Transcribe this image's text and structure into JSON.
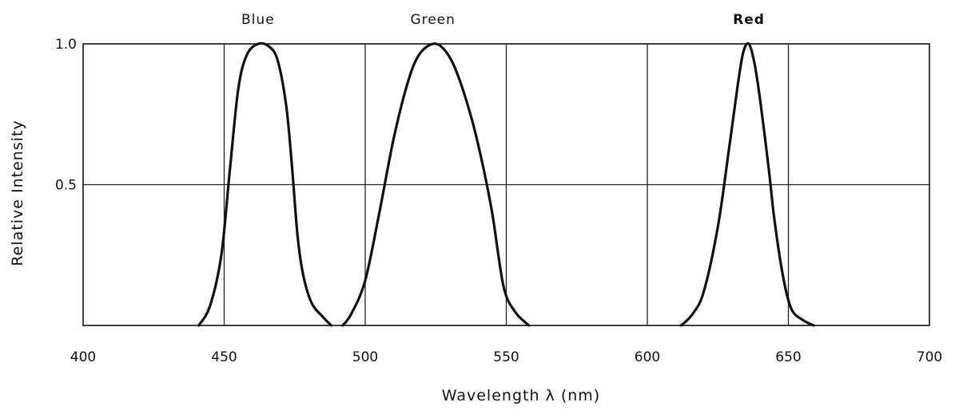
{
  "chart_data": {
    "type": "line",
    "title": "",
    "xlabel": "Wavelength λ (nm)",
    "ylabel": "Relative Intensity",
    "xlim": [
      400,
      700
    ],
    "ylim": [
      0,
      1.0
    ],
    "x_ticks": [
      "400",
      "450",
      "500",
      "550",
      "600",
      "650",
      "700"
    ],
    "y_ticks": [
      "0.5",
      "1.0"
    ],
    "grid": true,
    "series": [
      {
        "name": "Blue",
        "points": [
          [
            441,
            0
          ],
          [
            445,
            0.07
          ],
          [
            449,
            0.25
          ],
          [
            452,
            0.55
          ],
          [
            455,
            0.84
          ],
          [
            458,
            0.96
          ],
          [
            462,
            1.0
          ],
          [
            466,
            0.99
          ],
          [
            469,
            0.94
          ],
          [
            472,
            0.78
          ],
          [
            474,
            0.57
          ],
          [
            476,
            0.32
          ],
          [
            478,
            0.18
          ],
          [
            481,
            0.08
          ],
          [
            485,
            0.03
          ],
          [
            488,
            0
          ]
        ]
      },
      {
        "name": "Green",
        "points": [
          [
            492,
            0
          ],
          [
            495,
            0.04
          ],
          [
            500,
            0.16
          ],
          [
            505,
            0.4
          ],
          [
            510,
            0.66
          ],
          [
            515,
            0.86
          ],
          [
            519,
            0.96
          ],
          [
            524,
            1.0
          ],
          [
            528,
            0.98
          ],
          [
            532,
            0.91
          ],
          [
            537,
            0.76
          ],
          [
            541,
            0.6
          ],
          [
            545,
            0.4
          ],
          [
            549,
            0.14
          ],
          [
            553,
            0.05
          ],
          [
            558,
            0
          ]
        ]
      },
      {
        "name": "Red",
        "points": [
          [
            612,
            0
          ],
          [
            616,
            0.04
          ],
          [
            620,
            0.12
          ],
          [
            625,
            0.35
          ],
          [
            629,
            0.63
          ],
          [
            632,
            0.85
          ],
          [
            634,
            0.97
          ],
          [
            636,
            1.0
          ],
          [
            638,
            0.93
          ],
          [
            640,
            0.8
          ],
          [
            643,
            0.56
          ],
          [
            645,
            0.38
          ],
          [
            648,
            0.18
          ],
          [
            651,
            0.06
          ],
          [
            655,
            0.02
          ],
          [
            659,
            0
          ]
        ]
      }
    ]
  }
}
